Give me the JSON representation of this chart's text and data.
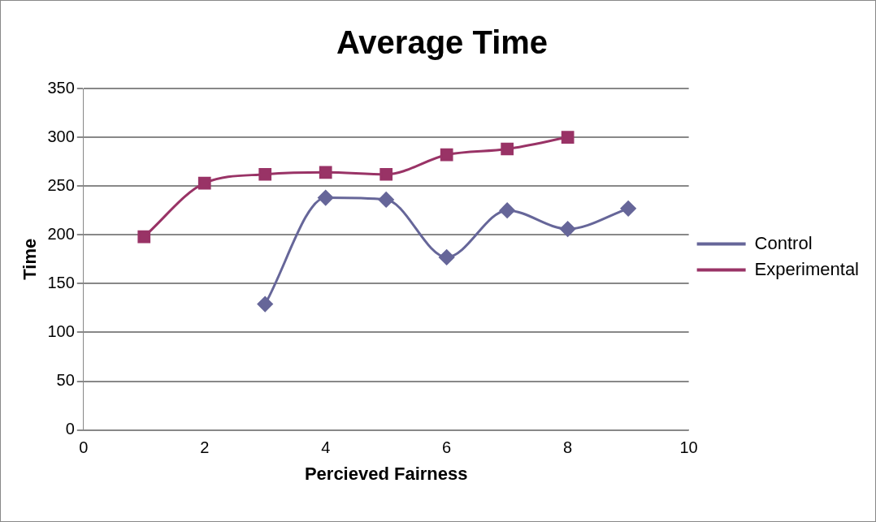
{
  "chart_data": {
    "type": "line",
    "title": "Average Time",
    "xlabel": "Percieved Fairness",
    "ylabel": "Time",
    "xlim": [
      0,
      10
    ],
    "xticks": [
      0,
      2,
      4,
      6,
      8,
      10
    ],
    "ylim": [
      0,
      350
    ],
    "yticks": [
      0,
      50,
      100,
      150,
      200,
      250,
      300,
      350
    ],
    "grid": "y",
    "legend": "right",
    "series": [
      {
        "name": "Control",
        "color": "#666699",
        "marker": "diamond",
        "x": [
          3,
          4,
          5,
          6,
          7,
          8,
          9
        ],
        "values": [
          129,
          238,
          236,
          177,
          225,
          206,
          227
        ]
      },
      {
        "name": "Experimental",
        "color": "#993366",
        "marker": "square",
        "x": [
          1,
          2,
          3,
          4,
          5,
          6,
          7,
          8
        ],
        "values": [
          198,
          253,
          262,
          264,
          262,
          282,
          288,
          300
        ]
      }
    ]
  }
}
